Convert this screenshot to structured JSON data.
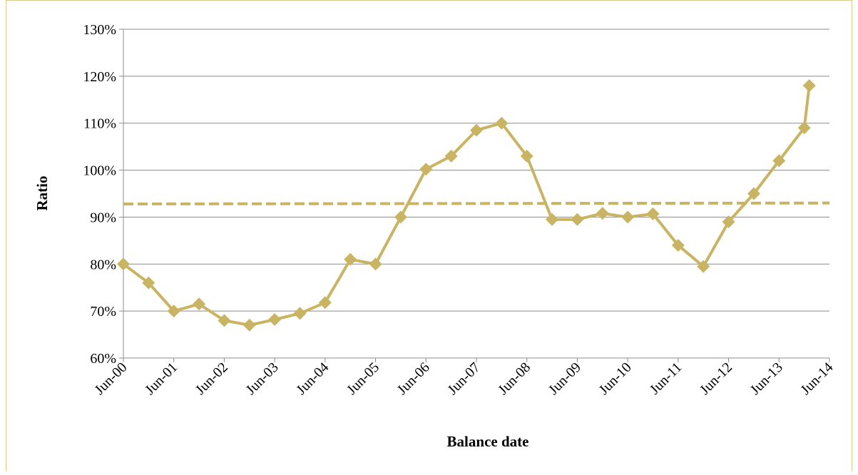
{
  "chart_data": {
    "type": "line",
    "x_label": "Balance date",
    "y_label": "Ratio",
    "xlim": [
      0,
      14
    ],
    "xticks": [
      {
        "value": 0,
        "label": "Jun-00"
      },
      {
        "value": 1,
        "label": "Jun-01"
      },
      {
        "value": 2,
        "label": "Jun-02"
      },
      {
        "value": 3,
        "label": "Jun-03"
      },
      {
        "value": 4,
        "label": "Jun-04"
      },
      {
        "value": 5,
        "label": "Jun-05"
      },
      {
        "value": 6,
        "label": "Jun-06"
      },
      {
        "value": 7,
        "label": "Jun-07"
      },
      {
        "value": 8,
        "label": "Jun-08"
      },
      {
        "value": 9,
        "label": "Jun-09"
      },
      {
        "value": 10,
        "label": "Jun-10"
      },
      {
        "value": 11,
        "label": "Jun-11"
      },
      {
        "value": 12,
        "label": "Jun-12"
      },
      {
        "value": 13,
        "label": "Jun-13"
      },
      {
        "value": 14,
        "label": "Jun-14"
      }
    ],
    "ylim": [
      60,
      130
    ],
    "yticks": [
      {
        "value": 60,
        "label": "60%"
      },
      {
        "value": 70,
        "label": "70%"
      },
      {
        "value": 80,
        "label": "80%"
      },
      {
        "value": 90,
        "label": "90%"
      },
      {
        "value": 100,
        "label": "100%"
      },
      {
        "value": 110,
        "label": "110%"
      },
      {
        "value": 120,
        "label": "120%"
      },
      {
        "value": 130,
        "label": "130%"
      }
    ],
    "grid": true,
    "color": "#c8b462",
    "x": [
      0,
      0.5,
      1,
      1.5,
      2,
      2.5,
      3,
      3.5,
      4,
      4.5,
      5,
      5.5,
      6,
      6.5,
      7,
      7.5,
      8,
      8.5,
      9,
      9.5,
      10,
      10.5,
      11,
      11.5,
      12,
      12.5,
      13,
      13.5,
      13.6
    ],
    "values": [
      80,
      76,
      70,
      71.5,
      68,
      67,
      68.2,
      69.5,
      71.8,
      81,
      80,
      90,
      100.2,
      103,
      108.5,
      110,
      103,
      89.5,
      89.5,
      90.8,
      90,
      90.7,
      84,
      79.5,
      89,
      95,
      102,
      109,
      118
    ],
    "trend_line": {
      "x": [
        0,
        14
      ],
      "values": [
        92.8,
        93.0
      ]
    }
  }
}
